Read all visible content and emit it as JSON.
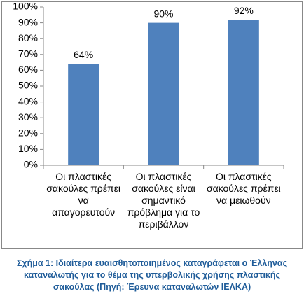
{
  "chart_data": {
    "type": "bar",
    "categories": [
      "Οι πλαστικές σακούλες πρέπει να απαγορευτούν",
      "Οι πλαστικές σακούλες είναι σημαντικό πρόβλημα για το περιβάλλον",
      "Οι πλαστικές σακούλες πρέπει να μειωθούν"
    ],
    "values": [
      64,
      90,
      92
    ],
    "value_labels": [
      "64%",
      "90%",
      "92%"
    ],
    "color": "#4f81bd",
    "ylim": [
      0,
      100
    ],
    "yticks": [
      {
        "value": 0,
        "label": "0%"
      },
      {
        "value": 10,
        "label": "10%"
      },
      {
        "value": 20,
        "label": "20%"
      },
      {
        "value": 30,
        "label": "30%"
      },
      {
        "value": 40,
        "label": "40%"
      },
      {
        "value": 50,
        "label": "50%"
      },
      {
        "value": 60,
        "label": "60%"
      },
      {
        "value": 70,
        "label": "70%"
      },
      {
        "value": 80,
        "label": "80%"
      },
      {
        "value": 90,
        "label": "90%"
      },
      {
        "value": 100,
        "label": "100%"
      }
    ],
    "grid": false,
    "caption": "Σχήμα 1: Ιδιαίτερα ευαισθητοποιημένος καταγράφεται ο Έλληνας καταναλωτής για το θέμα της υπερβολικής χρήσης πλαστικής σακούλας (Πηγή: Έρευνα καταναλωτών ΙΕΛΚΑ)"
  }
}
